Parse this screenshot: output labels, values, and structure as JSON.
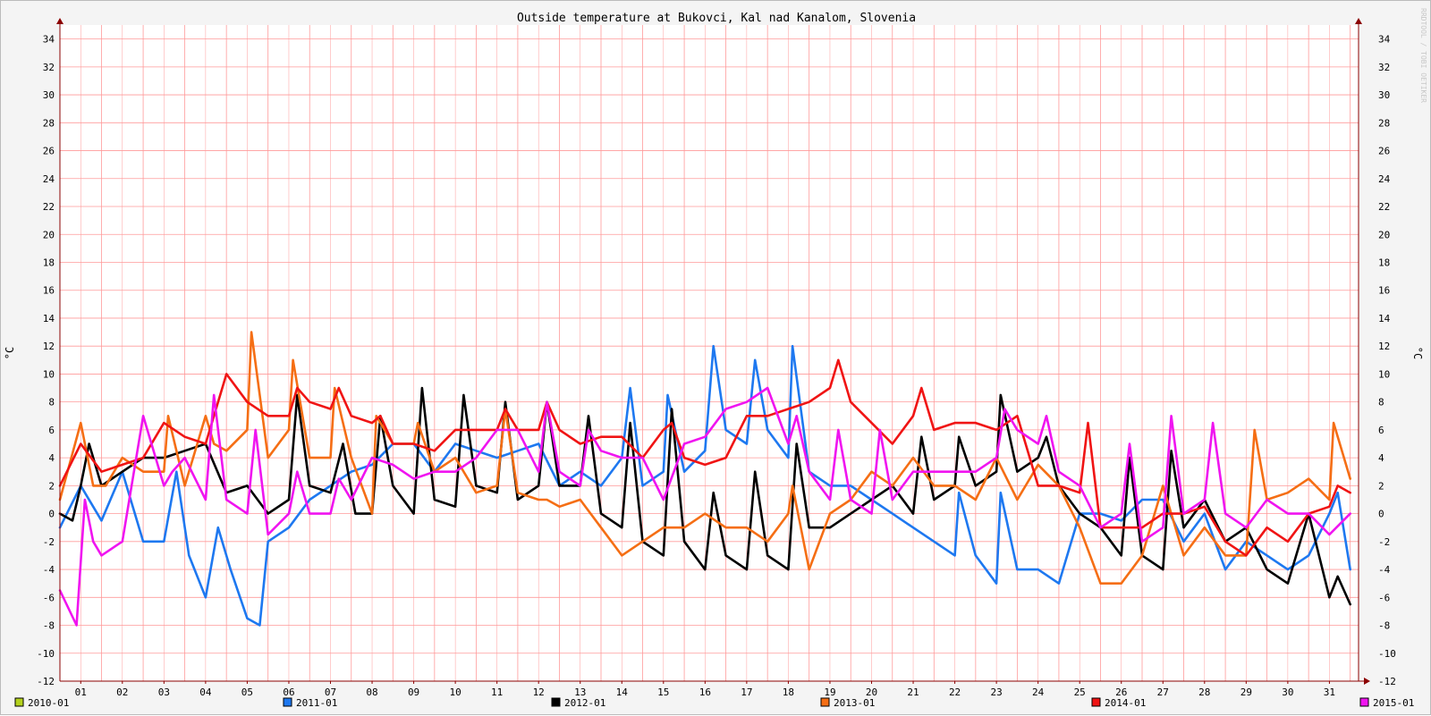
{
  "chart_data": {
    "type": "line",
    "title": "Outside temperature at Bukovci, Kal nad Kanalom, Slovenia",
    "ylabel": "°C",
    "ylabel_right": "°C",
    "watermark": "RRDTOOL / TOBI OETIKER",
    "ylim": [
      -12,
      35
    ],
    "yticks": [
      -12,
      -10,
      -8,
      -6,
      -4,
      -2,
      0,
      2,
      4,
      6,
      8,
      10,
      12,
      14,
      16,
      18,
      20,
      22,
      24,
      26,
      28,
      30,
      32,
      34
    ],
    "xlim": [
      0.5,
      31.7
    ],
    "categories": [
      "01",
      "02",
      "03",
      "04",
      "05",
      "06",
      "07",
      "08",
      "09",
      "10",
      "11",
      "12",
      "13",
      "14",
      "15",
      "16",
      "17",
      "18",
      "19",
      "20",
      "21",
      "22",
      "23",
      "24",
      "25",
      "26",
      "27",
      "28",
      "29",
      "30",
      "31"
    ],
    "grid": true,
    "legend_position": "bottom",
    "colors": {
      "background": "#f4f4f4",
      "plot_background": "#ffffff",
      "grid": "#ff9a9a",
      "axis": "#8b0000"
    },
    "series": [
      {
        "name": "2010-01",
        "color": "#b4d21e",
        "x": [],
        "y": []
      },
      {
        "name": "2011-01",
        "color": "#1e78f0",
        "x": [
          0.5,
          1,
          1.5,
          2,
          2.5,
          3,
          3.3,
          3.6,
          4,
          4.3,
          4.6,
          5,
          5.3,
          5.5,
          6,
          6.5,
          7,
          7.5,
          8,
          8.5,
          9,
          9.5,
          10,
          10.5,
          11,
          11.5,
          12,
          12.5,
          13,
          13.5,
          14,
          14.2,
          14.5,
          15,
          15.1,
          15.5,
          16,
          16.2,
          16.5,
          17,
          17.2,
          17.5,
          18,
          18.1,
          18.5,
          19,
          19.5,
          20,
          20.5,
          21,
          21.5,
          22,
          22.1,
          22.5,
          23,
          23.1,
          23.5,
          24,
          24.5,
          25,
          25.5,
          26,
          26.5,
          27,
          27.5,
          28,
          28.5,
          29,
          29.5,
          30,
          30.5,
          31,
          31.2,
          31.5
        ],
        "y": [
          -1,
          2,
          -0.5,
          3,
          -2,
          -2,
          3,
          -3,
          -6,
          -1,
          -4,
          -7.5,
          -8,
          -2,
          -1,
          1,
          2,
          3,
          3.5,
          5,
          5,
          3,
          5,
          4.5,
          4,
          4.5,
          5,
          2,
          3,
          2,
          4,
          9,
          2,
          3,
          8.5,
          3,
          4.5,
          12,
          6,
          5,
          11,
          6,
          4,
          12,
          3,
          2,
          2,
          1,
          0,
          -1,
          -2,
          -3,
          1.5,
          -3,
          -5,
          1.5,
          -4,
          -4,
          -5,
          0,
          0,
          -0.5,
          1,
          1,
          -2,
          0,
          -4,
          -2,
          -3,
          -4,
          -3,
          0,
          1.5,
          -4
        ]
      },
      {
        "name": "2012-01",
        "color": "#000000",
        "x": [
          0.5,
          0.8,
          1,
          1.2,
          1.5,
          2,
          2.5,
          3,
          3.5,
          4,
          4.5,
          5,
          5.5,
          6,
          6.2,
          6.5,
          7,
          7.3,
          7.6,
          8,
          8.2,
          8.5,
          9,
          9.2,
          9.5,
          10,
          10.2,
          10.5,
          11,
          11.2,
          11.5,
          12,
          12.2,
          12.5,
          13,
          13.2,
          13.5,
          14,
          14.2,
          14.5,
          15,
          15.2,
          15.5,
          16,
          16.2,
          16.5,
          17,
          17.2,
          17.5,
          18,
          18.2,
          18.5,
          19,
          19.5,
          20,
          20.5,
          21,
          21.2,
          21.5,
          22,
          22.1,
          22.5,
          23,
          23.1,
          23.5,
          24,
          24.2,
          24.5,
          25,
          25.5,
          26,
          26.2,
          26.5,
          27,
          27.2,
          27.5,
          28,
          28.5,
          29,
          29.5,
          30,
          30.5,
          31,
          31.2,
          31.5
        ],
        "y": [
          0,
          -0.5,
          2,
          5,
          2,
          3,
          4,
          4,
          4.5,
          5,
          1.5,
          2,
          0,
          1,
          8.5,
          2,
          1.5,
          5,
          0,
          0,
          7,
          2,
          0,
          9,
          1,
          0.5,
          8.5,
          2,
          1.5,
          8,
          1,
          2,
          8,
          2,
          2,
          7,
          0,
          -1,
          6.5,
          -2,
          -3,
          7.5,
          -2,
          -4,
          1.5,
          -3,
          -4,
          3,
          -3,
          -4,
          5,
          -1,
          -1,
          0,
          1,
          2,
          0,
          5.5,
          1,
          2,
          5.5,
          2,
          3,
          8.5,
          3,
          4,
          5.5,
          2,
          0,
          -1,
          -3,
          4,
          -3,
          -4,
          4.5,
          -1,
          1,
          -2,
          -1,
          -4,
          -5,
          0,
          -6,
          -4.5,
          -6.5
        ]
      },
      {
        "name": "2013-01",
        "color": "#f56e14",
        "x": [
          0.5,
          1,
          1.3,
          1.6,
          2,
          2.5,
          3,
          3.1,
          3.5,
          4,
          4.2,
          4.5,
          5,
          5.1,
          5.5,
          6,
          6.1,
          6.5,
          7,
          7.1,
          7.5,
          8,
          8.1,
          8.5,
          9,
          9.1,
          9.5,
          10,
          10.5,
          11,
          11.2,
          11.5,
          12,
          12.2,
          12.5,
          13,
          13.5,
          14,
          14.5,
          15,
          15.5,
          16,
          16.5,
          17,
          17.5,
          18,
          18.1,
          18.5,
          19,
          19.5,
          20,
          20.5,
          21,
          21.5,
          22,
          22.5,
          23,
          23.5,
          24,
          24.5,
          25,
          25.5,
          26,
          26.5,
          27,
          27.5,
          28,
          28.5,
          29,
          29.2,
          29.5,
          30,
          30.5,
          31,
          31.1,
          31.5
        ],
        "y": [
          1,
          6.5,
          2,
          2,
          4,
          3,
          3,
          7,
          2,
          7,
          5,
          4.5,
          6,
          13,
          4,
          6,
          11,
          4,
          4,
          9,
          4,
          0,
          7,
          5,
          5,
          6.5,
          3,
          4,
          1.5,
          2,
          7.5,
          1.5,
          1,
          1,
          0.5,
          1,
          -1,
          -3,
          -2,
          -1,
          -1,
          0,
          -1,
          -1,
          -2,
          0,
          2,
          -4,
          0,
          1,
          3,
          2,
          4,
          2,
          2,
          1,
          4,
          1,
          3.5,
          2,
          -1,
          -5,
          -5,
          -3,
          2,
          -3,
          -1,
          -3,
          -3,
          6,
          1,
          1.5,
          2.5,
          1,
          6.5,
          2.5
        ]
      },
      {
        "name": "2014-01",
        "color": "#f01414",
        "x": [
          0.5,
          1,
          1.5,
          2,
          2.5,
          3,
          3.5,
          4,
          4.5,
          5,
          5.5,
          6,
          6.2,
          6.5,
          7,
          7.2,
          7.5,
          8,
          8.2,
          8.5,
          9,
          9.5,
          10,
          10.5,
          11,
          11.2,
          11.5,
          12,
          12.2,
          12.5,
          13,
          13.5,
          14,
          14.5,
          15,
          15.2,
          15.5,
          16,
          16.5,
          17,
          17.5,
          18,
          18.5,
          19,
          19.2,
          19.5,
          20,
          20.5,
          21,
          21.2,
          21.5,
          22,
          22.5,
          23,
          23.5,
          24,
          24.5,
          25,
          25.2,
          25.5,
          26,
          26.5,
          27,
          27.5,
          28,
          28.5,
          29,
          29.5,
          30,
          30.5,
          31,
          31.2,
          31.5
        ],
        "y": [
          2,
          5,
          3,
          3.5,
          4,
          6.5,
          5.5,
          5,
          10,
          8,
          7,
          7,
          9,
          8,
          7.5,
          9,
          7,
          6.5,
          7,
          5,
          5,
          4.5,
          6,
          6,
          6,
          7.5,
          6,
          6,
          8,
          6,
          5,
          5.5,
          5.5,
          4,
          6,
          6.5,
          4,
          3.5,
          4,
          7,
          7,
          7.5,
          8,
          9,
          11,
          8,
          6.5,
          5,
          7,
          9,
          6,
          6.5,
          6.5,
          6,
          7,
          2,
          2,
          1.5,
          6.5,
          -1,
          -1,
          -1,
          0,
          0,
          0.5,
          -2,
          -3,
          -1,
          -2,
          0,
          0.5,
          2,
          1.5
        ]
      },
      {
        "name": "2015-01",
        "color": "#f014f0",
        "x": [
          0.5,
          0.9,
          1.1,
          1.3,
          1.5,
          2,
          2.5,
          3,
          3.2,
          3.5,
          4,
          4.2,
          4.5,
          5,
          5.2,
          5.5,
          6,
          6.2,
          6.5,
          7,
          7.2,
          7.5,
          8,
          8.5,
          9,
          9.5,
          10,
          10.5,
          11,
          11.5,
          12,
          12.2,
          12.5,
          13,
          13.2,
          13.5,
          14,
          14.5,
          15,
          15.5,
          16,
          16.5,
          17,
          17.5,
          18,
          18.2,
          18.5,
          19,
          19.2,
          19.5,
          20,
          20.2,
          20.5,
          21,
          21.5,
          22,
          22.5,
          23,
          23.2,
          23.5,
          24,
          24.2,
          24.5,
          25,
          25.5,
          26,
          26.2,
          26.5,
          27,
          27.2,
          27.5,
          28,
          28.2,
          28.5,
          29,
          29.5,
          30,
          30.5,
          31,
          31.5
        ],
        "y": [
          -5.5,
          -8,
          1,
          -2,
          -3,
          -2,
          7,
          2,
          3,
          4,
          1,
          8.5,
          1,
          0,
          6,
          -1.5,
          0,
          3,
          0,
          0,
          2.5,
          1,
          4,
          3.5,
          2.5,
          3,
          3,
          4,
          6,
          6,
          3,
          8,
          3,
          2,
          6,
          4.5,
          4,
          4,
          1,
          5,
          5.5,
          7.5,
          8,
          9,
          5,
          7,
          3,
          1,
          6,
          1,
          0,
          6,
          1,
          3,
          3,
          3,
          3,
          4,
          7.5,
          6,
          5,
          7,
          3,
          2,
          -1,
          0,
          5,
          -2,
          -1,
          7,
          0,
          1,
          6.5,
          0,
          -1,
          1,
          0,
          0,
          -1.5,
          0
        ]
      }
    ]
  }
}
